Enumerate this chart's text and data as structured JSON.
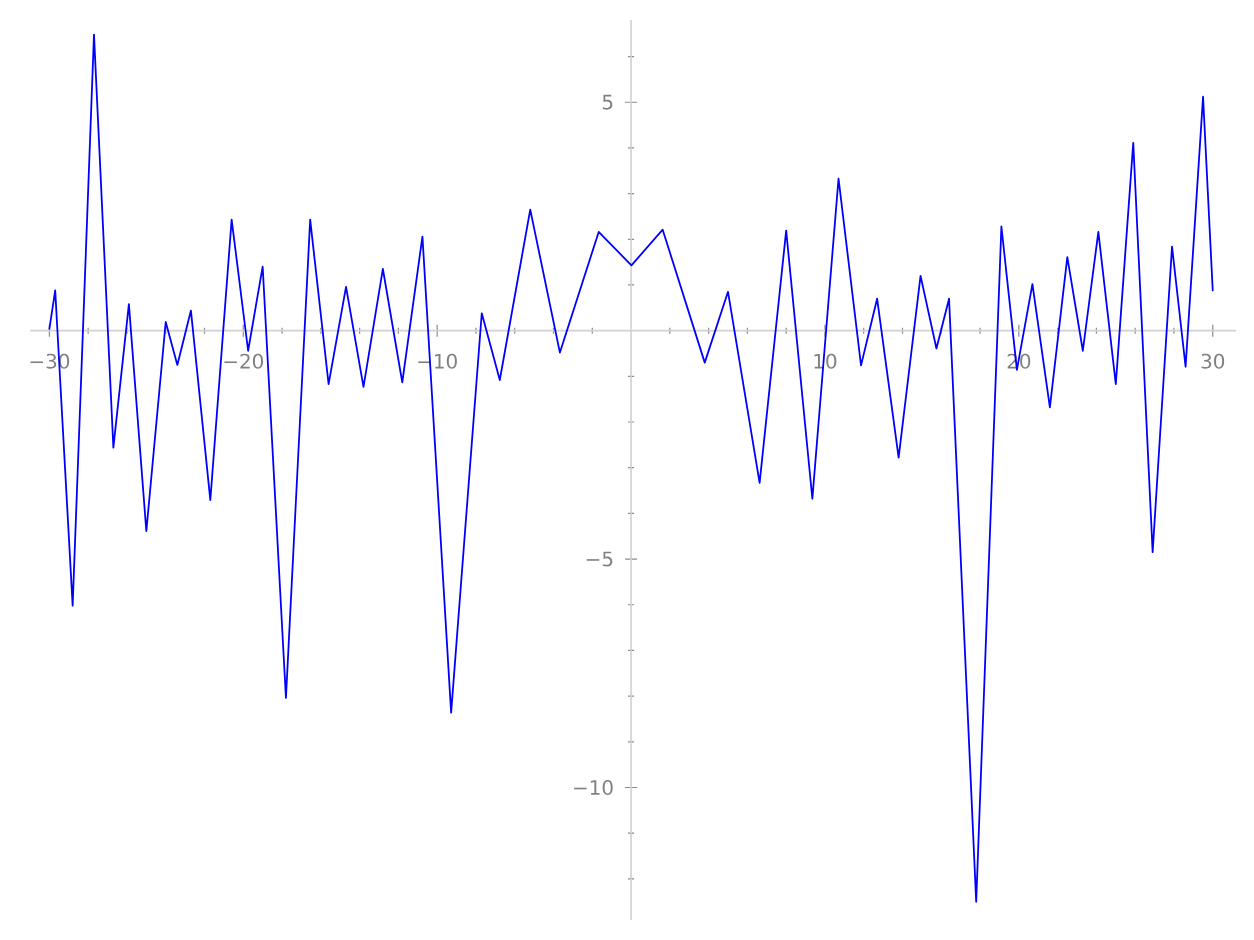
{
  "chart_data": {
    "type": "line",
    "x": [
      -30,
      -29.7,
      -28.8,
      -27.7,
      -26.7,
      -25.9,
      -25.0,
      -24.0,
      -23.4,
      -22.7,
      -21.7,
      -20.6,
      -19.75,
      -19.0,
      -17.8,
      -16.55,
      -15.6,
      -14.7,
      -13.8,
      -12.8,
      -11.8,
      -10.76,
      -9.28,
      -7.7,
      -6.77,
      -5.2,
      -3.67,
      -1.67,
      0.02,
      1.63,
      3.8,
      5.0,
      6.63,
      8.0,
      9.35,
      10.7,
      11.86,
      12.69,
      13.8,
      14.93,
      15.75,
      16.4,
      17.8,
      19.1,
      19.9,
      20.7,
      21.6,
      22.5,
      23.3,
      24.1,
      25.0,
      25.9,
      26.9,
      27.9,
      28.6,
      29.5,
      30
    ],
    "series": [
      {
        "color": "#0000ff",
        "values": [
          0.04,
          0.88,
          -6.02,
          6.48,
          -2.56,
          0.58,
          -4.39,
          0.19,
          -0.75,
          0.44,
          -3.71,
          2.43,
          -0.44,
          1.4,
          -8.04,
          2.43,
          -1.17,
          0.96,
          -1.23,
          1.35,
          -1.13,
          2.06,
          -8.36,
          0.38,
          -1.08,
          2.65,
          -0.48,
          2.16,
          1.43,
          2.21,
          -0.7,
          0.85,
          -3.33,
          2.19,
          -3.68,
          3.33,
          -0.76,
          0.7,
          -2.78,
          1.2,
          -0.39,
          0.7,
          -12.5,
          2.28,
          -0.86,
          1.02,
          -1.68,
          1.61,
          -0.44,
          2.16,
          -1.17,
          4.11,
          -4.85,
          1.84,
          -0.79,
          5.12,
          0.88
        ]
      }
    ],
    "xlim": [
      -31,
      31.2
    ],
    "ylim": [
      -12.9,
      6.8
    ],
    "xticks": [
      {
        "value": -30,
        "label": "−30"
      },
      {
        "value": -28,
        "label": null
      },
      {
        "value": -26,
        "label": null
      },
      {
        "value": -24,
        "label": null
      },
      {
        "value": -22,
        "label": null
      },
      {
        "value": -20,
        "label": "−20"
      },
      {
        "value": -18,
        "label": null
      },
      {
        "value": -16,
        "label": null
      },
      {
        "value": -14,
        "label": null
      },
      {
        "value": -12,
        "label": null
      },
      {
        "value": -10,
        "label": "−10"
      },
      {
        "value": -8,
        "label": null
      },
      {
        "value": -6,
        "label": null
      },
      {
        "value": -4,
        "label": null
      },
      {
        "value": -2,
        "label": null
      },
      {
        "value": 2,
        "label": null
      },
      {
        "value": 4,
        "label": null
      },
      {
        "value": 6,
        "label": null
      },
      {
        "value": 8,
        "label": null
      },
      10,
      {
        "value": 12,
        "label": null
      },
      {
        "value": 14,
        "label": null
      },
      {
        "value": 16,
        "label": null
      },
      {
        "value": 18,
        "label": null
      },
      20,
      {
        "value": 22,
        "label": null
      },
      {
        "value": 24,
        "label": null
      },
      {
        "value": 26,
        "label": null
      },
      {
        "value": 28,
        "label": null
      },
      30
    ],
    "yticks": [
      {
        "value": -12,
        "label": null
      },
      {
        "value": -11,
        "label": null
      },
      {
        "value": -10,
        "label": "−10"
      },
      {
        "value": -9,
        "label": null
      },
      {
        "value": -8,
        "label": null
      },
      {
        "value": -7,
        "label": null
      },
      {
        "value": -6,
        "label": null
      },
      {
        "value": -5,
        "label": "−5"
      },
      {
        "value": -4,
        "label": null
      },
      {
        "value": -3,
        "label": null
      },
      {
        "value": -2,
        "label": null
      },
      {
        "value": -1,
        "label": null
      },
      {
        "value": 1,
        "label": null
      },
      {
        "value": 2,
        "label": null
      },
      {
        "value": 3,
        "label": null
      },
      {
        "value": 4,
        "label": null
      },
      5,
      {
        "value": 6,
        "label": null
      }
    ],
    "grid": false,
    "marker": "none",
    "line_style": "solid"
  }
}
